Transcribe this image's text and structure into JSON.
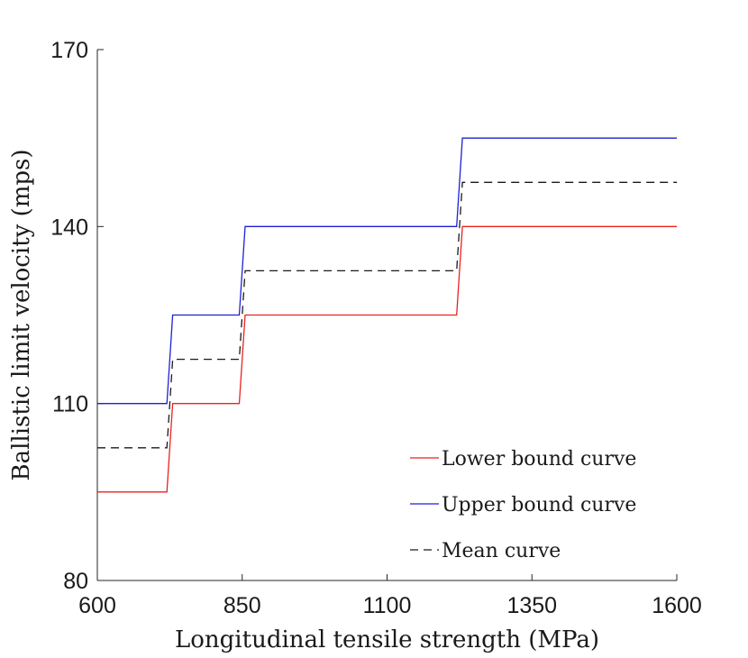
{
  "chart_data": {
    "type": "line",
    "title": "",
    "xlabel": "Longitudinal tensile strength (MPa)",
    "ylabel": "Ballistic limit velocity (mps)",
    "xlim": [
      600,
      1600
    ],
    "ylim": [
      80,
      170
    ],
    "xticks": [
      600,
      850,
      1100,
      1350,
      1600
    ],
    "yticks": [
      80,
      110,
      140,
      170
    ],
    "grid": false,
    "legend_position": "bottom-right",
    "series": [
      {
        "name": "Lower bound curve",
        "color": "#e8231f",
        "style": "solid",
        "x": [
          600,
          720,
          730,
          845,
          855,
          1220,
          1230,
          1600
        ],
        "y": [
          95,
          95,
          110,
          110,
          125,
          125,
          140,
          140
        ]
      },
      {
        "name": "Upper bound curve",
        "color": "#1f1fd6",
        "style": "solid",
        "x": [
          600,
          720,
          730,
          845,
          855,
          1220,
          1230,
          1600
        ],
        "y": [
          110,
          110,
          125,
          125,
          140,
          140,
          155,
          155
        ]
      },
      {
        "name": "Mean curve",
        "color": "#1a1a1a",
        "style": "dashed",
        "x": [
          600,
          720,
          730,
          845,
          855,
          1220,
          1230,
          1600
        ],
        "y": [
          102.5,
          102.5,
          117.5,
          117.5,
          132.5,
          132.5,
          147.5,
          147.5
        ]
      }
    ]
  }
}
